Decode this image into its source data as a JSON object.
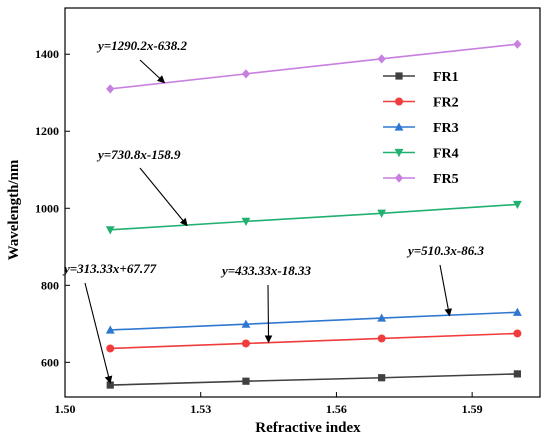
{
  "chart_data": {
    "type": "line",
    "title": "",
    "xlabel": "Refractive index",
    "ylabel": "Wavelength/nm",
    "xlim": [
      1.5,
      1.605
    ],
    "ylim": [
      510,
      1520
    ],
    "x_ticks": [
      1.5,
      1.53,
      1.56,
      1.59
    ],
    "x_tick_labels": [
      "1.50",
      "1.53",
      "1.56",
      "1.59"
    ],
    "y_ticks": [
      600,
      800,
      1000,
      1200,
      1400
    ],
    "y_tick_labels": [
      "600",
      "800",
      "1000",
      "1200",
      "1400"
    ],
    "x": [
      1.51,
      1.54,
      1.57,
      1.6
    ],
    "legend_position": "top-right",
    "grid": false,
    "series": [
      {
        "name": "FR1",
        "color": "#404040",
        "marker": "square",
        "values": [
          541,
          551,
          560,
          570
        ]
      },
      {
        "name": "FR2",
        "color": "#f03c3c",
        "marker": "circle",
        "values": [
          636,
          649,
          662,
          675
        ]
      },
      {
        "name": "FR3",
        "color": "#2f78d0",
        "marker": "triangle-up",
        "values": [
          684,
          699,
          715,
          730
        ]
      },
      {
        "name": "FR4",
        "color": "#20b070",
        "marker": "triangle-down",
        "values": [
          944,
          966,
          987,
          1010
        ]
      },
      {
        "name": "FR5",
        "color": "#c77fe0",
        "marker": "diamond",
        "values": [
          1310,
          1349,
          1388,
          1426
        ]
      }
    ],
    "annotations": [
      {
        "text": "y=1290.2x-638.2",
        "arrow_to": [
          1.522,
          1326
        ]
      },
      {
        "text": "y=730.8x-158.9",
        "arrow_to": [
          1.527,
          955
        ]
      },
      {
        "text": "y=510.3x-86.3",
        "arrow_to": [
          1.585,
          721
        ]
      },
      {
        "text": "y=433.33x-18.33",
        "arrow_to": [
          1.545,
          652
        ]
      },
      {
        "text": "y=313.33x+67.77",
        "arrow_to": [
          1.51,
          546
        ]
      }
    ]
  }
}
